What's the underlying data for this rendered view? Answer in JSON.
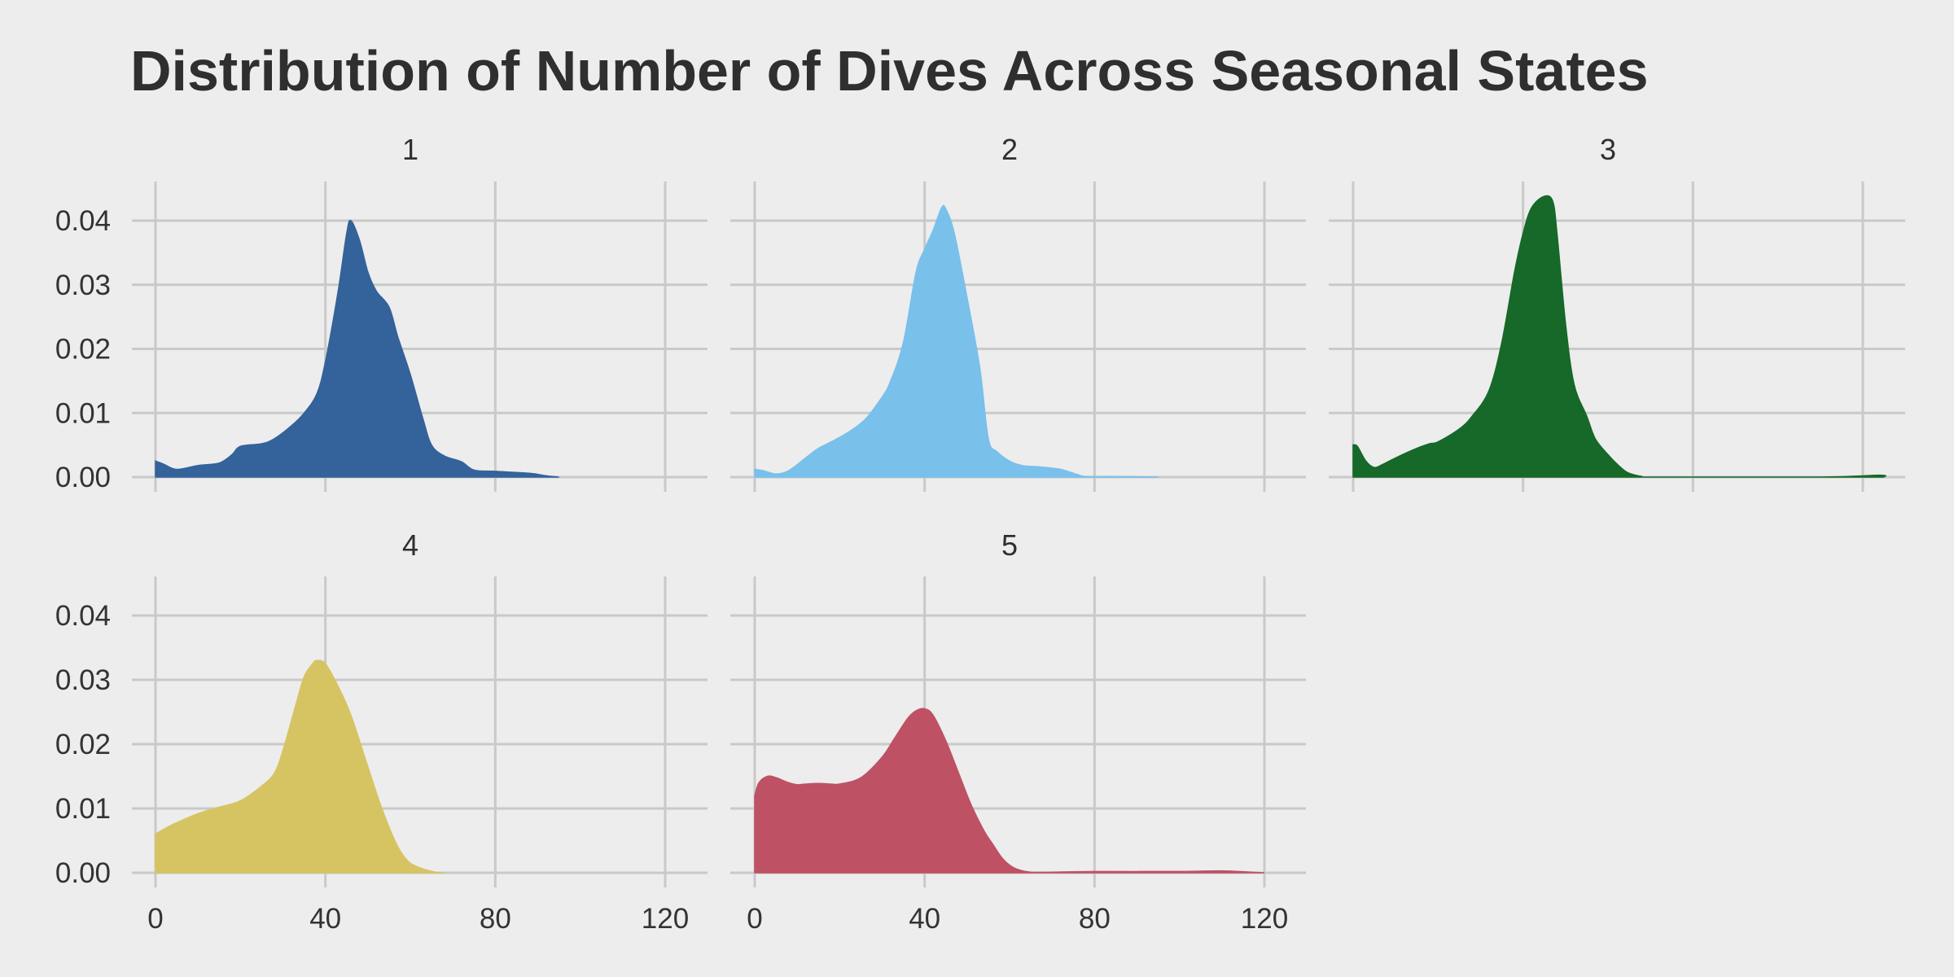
{
  "chart_data": {
    "type": "area",
    "title": "Distribution of Number of Dives Across Seasonal States",
    "xlabel": "",
    "ylabel": "",
    "xlim": [
      0,
      130
    ],
    "ylim": [
      0,
      0.046
    ],
    "x_ticks": [
      0,
      40,
      80,
      120
    ],
    "x_tick_labels": [
      "0",
      "40",
      "80",
      "120"
    ],
    "y_ticks": [
      0,
      0.01,
      0.02,
      0.03,
      0.04
    ],
    "y_tick_labels": [
      "0.00",
      "0.01",
      "0.02",
      "0.03",
      "0.04"
    ],
    "grid": true,
    "layout": "facet grid, 2 rows x 3 columns",
    "panels": [
      {
        "label": "1",
        "color": "#34629a",
        "x": [
          0,
          2,
          5,
          10,
          15,
          18,
          20,
          25,
          28,
          32,
          35,
          38,
          40,
          43,
          45,
          46,
          48,
          50,
          52,
          55,
          57,
          60,
          63,
          65,
          68,
          72,
          75,
          80,
          88,
          92,
          95
        ],
        "y": [
          0.0025,
          0.002,
          0.0012,
          0.0018,
          0.0022,
          0.0035,
          0.0048,
          0.0052,
          0.006,
          0.008,
          0.01,
          0.013,
          0.018,
          0.029,
          0.038,
          0.04,
          0.037,
          0.032,
          0.029,
          0.0265,
          0.022,
          0.016,
          0.009,
          0.005,
          0.0033,
          0.0024,
          0.0011,
          0.0009,
          0.0006,
          0.0002,
          0
        ]
      },
      {
        "label": "2",
        "color": "#79c0eb",
        "x": [
          0,
          2,
          5,
          8,
          12,
          15,
          18,
          22,
          26,
          30,
          32,
          35,
          38,
          40,
          42,
          44,
          45,
          47,
          50,
          53,
          55,
          57,
          60,
          63,
          67,
          72,
          76,
          78,
          85,
          95
        ],
        "y": [
          0.0012,
          0.001,
          0.0005,
          0.001,
          0.003,
          0.0045,
          0.0055,
          0.007,
          0.009,
          0.0125,
          0.015,
          0.021,
          0.032,
          0.0355,
          0.0385,
          0.042,
          0.0418,
          0.038,
          0.028,
          0.017,
          0.006,
          0.004,
          0.0025,
          0.0018,
          0.0016,
          0.0012,
          0.0004,
          0.0001,
          0.0001,
          0
        ]
      },
      {
        "label": "3",
        "color": "#166928",
        "x": [
          0,
          1,
          3,
          5,
          7,
          10,
          15,
          18,
          20,
          25,
          28,
          32,
          35,
          38,
          40,
          42,
          45,
          47,
          48,
          50,
          52,
          55,
          57,
          60,
          63,
          65,
          68,
          70,
          110,
          124,
          125
        ],
        "y": [
          0.005,
          0.0048,
          0.0025,
          0.0015,
          0.002,
          0.003,
          0.0045,
          0.0052,
          0.0055,
          0.0075,
          0.0095,
          0.0135,
          0.021,
          0.032,
          0.038,
          0.042,
          0.0438,
          0.043,
          0.038,
          0.024,
          0.0145,
          0.0095,
          0.006,
          0.0035,
          0.0015,
          0.0006,
          0.0001,
          0,
          0,
          0.0003,
          0
        ]
      },
      {
        "label": "4",
        "color": "#d6c463",
        "x": [
          0,
          2,
          5,
          10,
          15,
          20,
          25,
          28,
          30,
          33,
          35,
          37,
          38,
          40,
          43,
          46,
          50,
          53,
          56,
          58,
          60,
          63,
          66,
          68
        ],
        "y": [
          0.006,
          0.0068,
          0.0078,
          0.0092,
          0.0102,
          0.0112,
          0.0135,
          0.0155,
          0.019,
          0.026,
          0.0305,
          0.0325,
          0.033,
          0.0325,
          0.029,
          0.0245,
          0.0165,
          0.0105,
          0.0055,
          0.003,
          0.0015,
          0.0006,
          0.0001,
          0
        ]
      },
      {
        "label": "5",
        "color": "#bf5164",
        "x": [
          0,
          1,
          3,
          5,
          8,
          10,
          12,
          15,
          18,
          20,
          25,
          30,
          33,
          36,
          38,
          40,
          42,
          45,
          48,
          51,
          54,
          56,
          58,
          60,
          62,
          65,
          70,
          80,
          100,
          110,
          120
        ],
        "y": [
          0.012,
          0.014,
          0.015,
          0.0148,
          0.014,
          0.0137,
          0.0138,
          0.0139,
          0.0138,
          0.0138,
          0.0148,
          0.018,
          0.021,
          0.024,
          0.0252,
          0.0255,
          0.0245,
          0.0205,
          0.0155,
          0.0105,
          0.0065,
          0.0045,
          0.0025,
          0.0012,
          0.0005,
          0.0001,
          0.0001,
          0.0002,
          0.0002,
          0.0003,
          0
        ]
      }
    ]
  }
}
